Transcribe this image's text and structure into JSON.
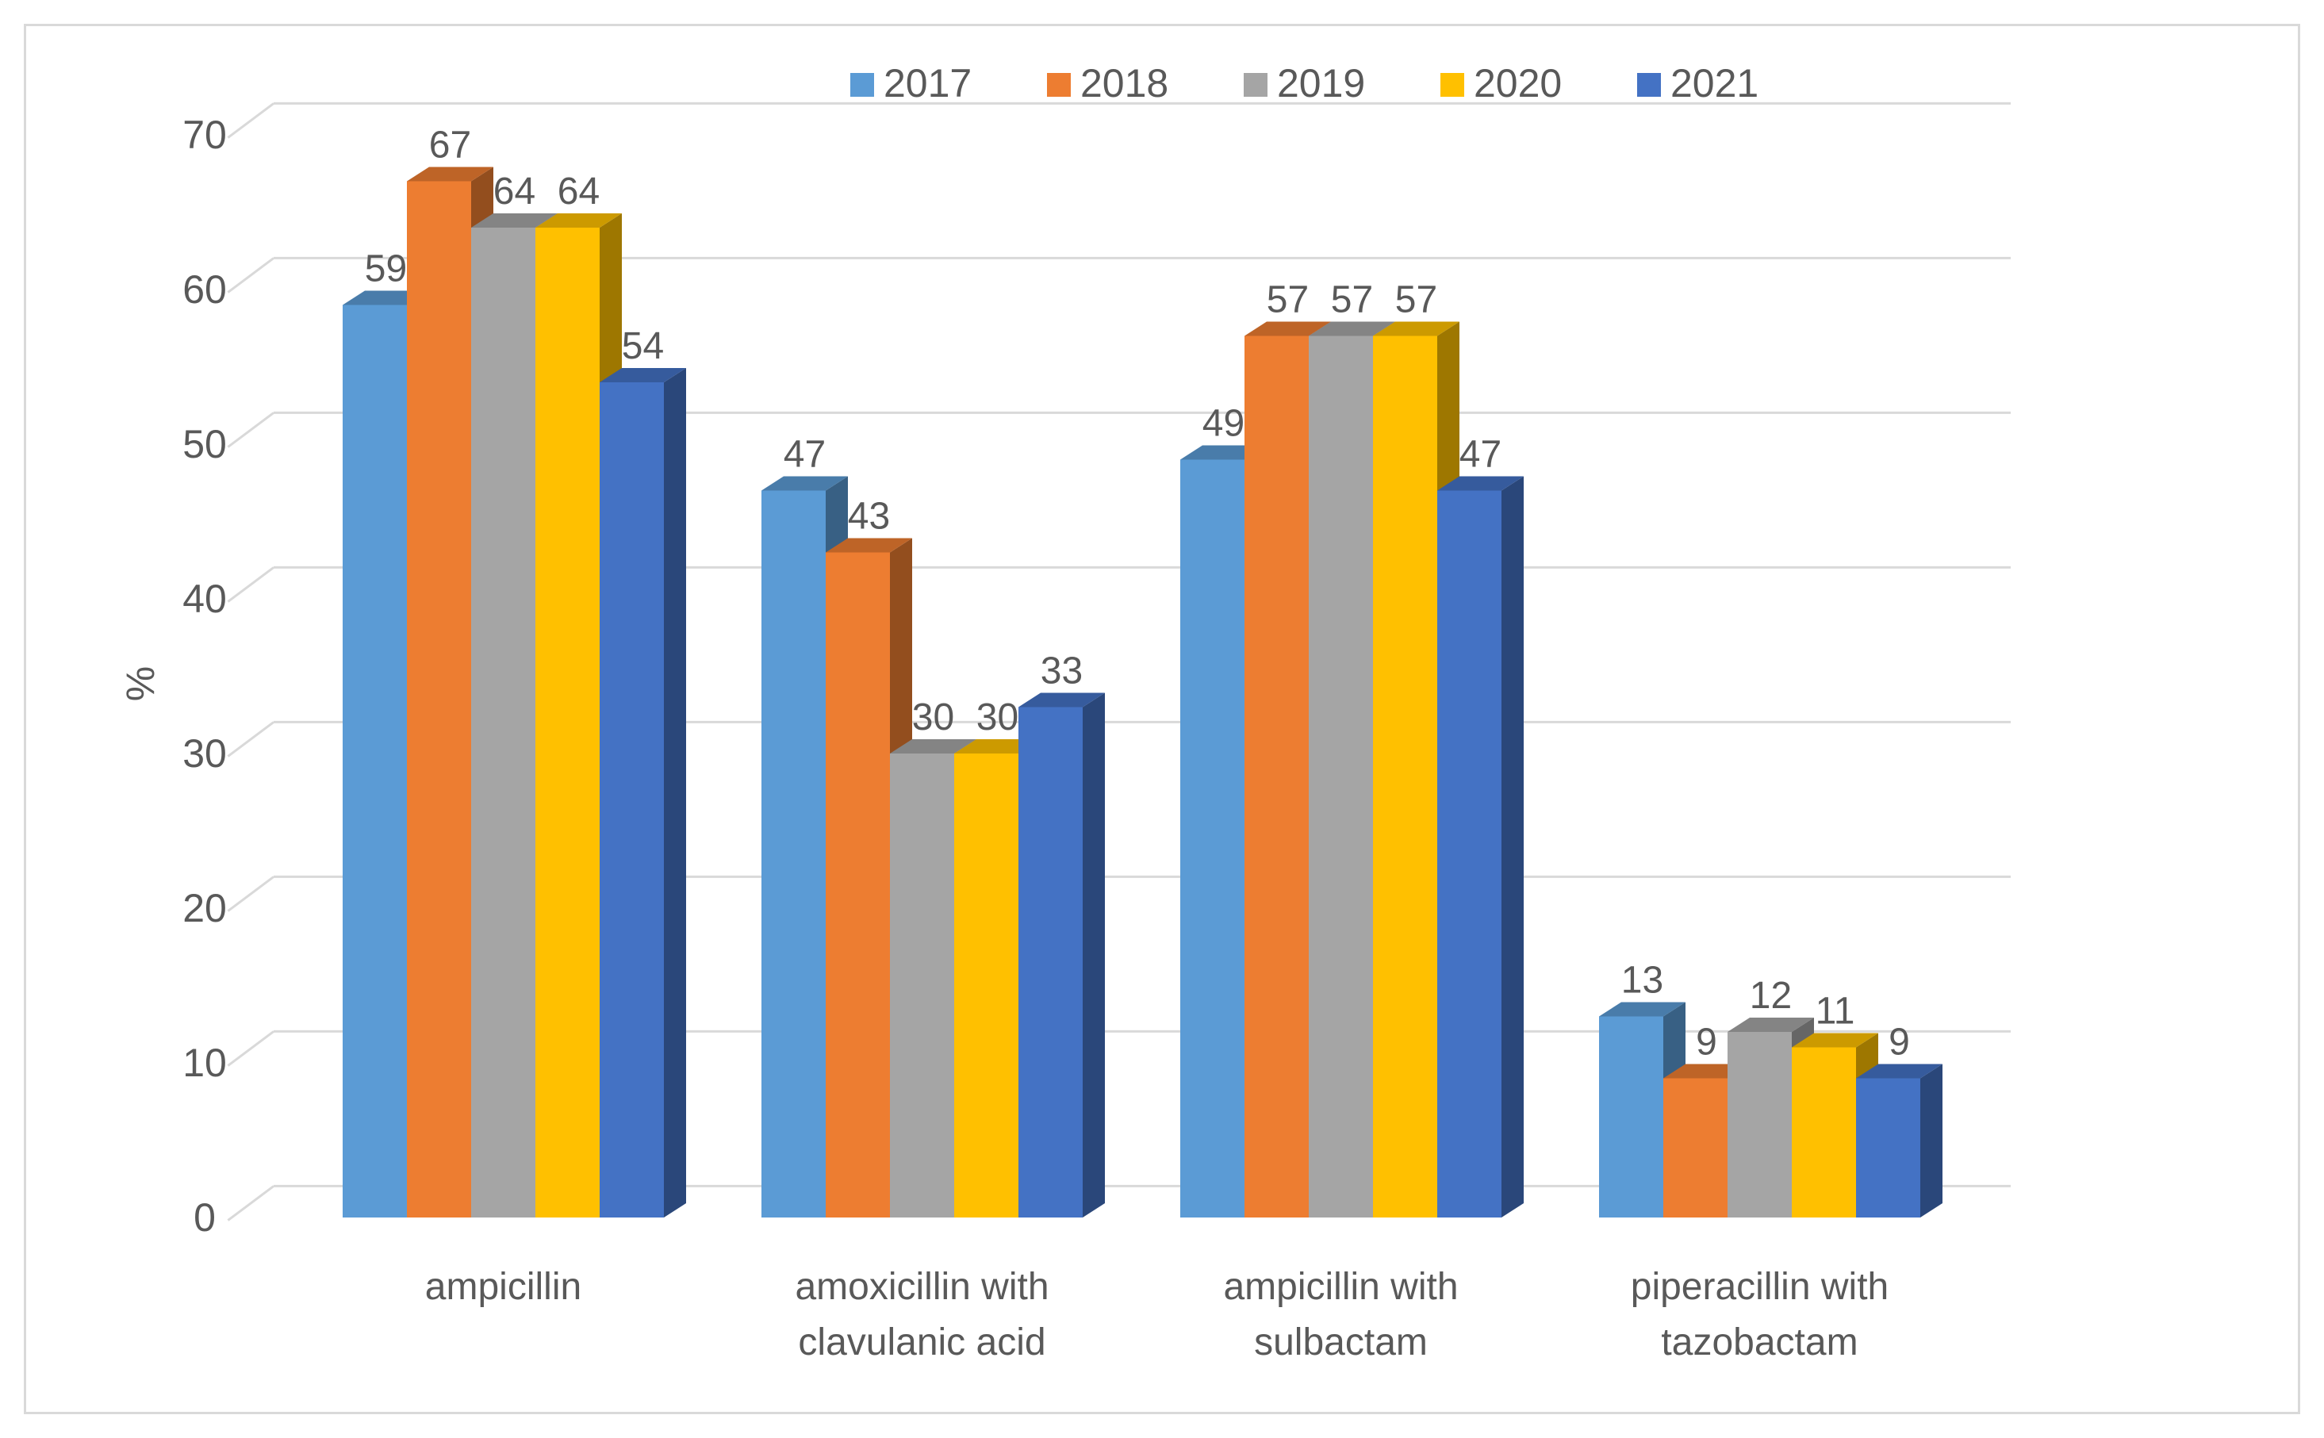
{
  "chart_data": {
    "type": "bar",
    "style": "3d-clustered-column",
    "title": "",
    "xlabel": "",
    "ylabel": "%",
    "ylim": [
      0,
      70
    ],
    "yticks": [
      0,
      10,
      20,
      30,
      40,
      50,
      60,
      70
    ],
    "grid": true,
    "legend_position": "top",
    "categories": [
      [
        "ampicillin"
      ],
      [
        "amoxicillin with",
        "clavulanic acid"
      ],
      [
        "ampicillin with",
        "sulbactam"
      ],
      [
        "piperacillin with",
        "tazobactam"
      ]
    ],
    "series": [
      {
        "name": "2017",
        "color": "#5B9BD5",
        "values": [
          59,
          47,
          49,
          13
        ]
      },
      {
        "name": "2018",
        "color": "#ED7D31",
        "values": [
          67,
          43,
          57,
          9
        ]
      },
      {
        "name": "2019",
        "color": "#A5A5A5",
        "values": [
          64,
          30,
          57,
          12
        ]
      },
      {
        "name": "2020",
        "color": "#FFC000",
        "values": [
          64,
          30,
          57,
          11
        ]
      },
      {
        "name": "2021",
        "color": "#4472C4",
        "values": [
          54,
          33,
          47,
          9
        ]
      }
    ]
  }
}
